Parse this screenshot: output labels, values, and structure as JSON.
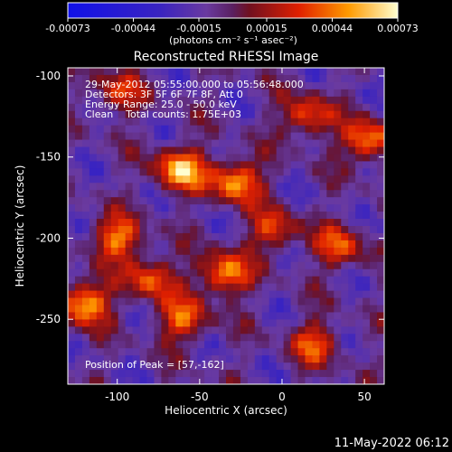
{
  "chart_data": {
    "type": "heatmap",
    "title": "Reconstructed RHESSI Image",
    "xlabel": "Heliocentric X (arcsec)",
    "ylabel": "Heliocentric Y (arcsec)",
    "xlim": [
      -130,
      62
    ],
    "ylim": [
      -290,
      -95
    ],
    "x_ticks": [
      -100,
      -50,
      0,
      50
    ],
    "x_tick_labels": [
      "-100",
      "-50",
      "0",
      "50"
    ],
    "y_ticks": [
      -100,
      -150,
      -200,
      -250
    ],
    "y_tick_labels": [
      "-100",
      "-150",
      "-200",
      "-250"
    ],
    "colorbar": {
      "range": [
        -0.00073,
        0.00073
      ],
      "ticks": [
        -0.00073,
        -0.00044,
        -0.00015,
        0.00015,
        0.00044,
        0.00073
      ],
      "tick_labels": [
        "-0.00073",
        "-0.00044",
        "-0.00015",
        "0.00015",
        "0.00044",
        "0.00073"
      ],
      "unit_label": "(photons cm⁻² s⁻¹ asec⁻²)"
    },
    "annotations": [
      "29-May-2012 05:55:00.000 to 05:56:48.000",
      "Detectors: 3F 5F 6F 7F 8F, Att 0",
      "Energy Range: 25.0 - 50.0 keV",
      "Clean    Total counts: 1.75E+03"
    ],
    "peak_text": "Position of Peak = [57,-162]",
    "peak": [
      57,
      -162
    ],
    "blobs": [
      {
        "x": -62,
        "y": -158,
        "v": 0.00072
      },
      {
        "x": -28,
        "y": -165,
        "v": 0.00066
      },
      {
        "x": -35,
        "y": -222,
        "v": 0.00064
      },
      {
        "x": -120,
        "y": -240,
        "v": 0.0007
      },
      {
        "x": -100,
        "y": -200,
        "v": 0.00058
      },
      {
        "x": -80,
        "y": -225,
        "v": 0.0005
      },
      {
        "x": -60,
        "y": -250,
        "v": 0.00052
      },
      {
        "x": 52,
        "y": -140,
        "v": 0.0006
      },
      {
        "x": 15,
        "y": -125,
        "v": 0.0005
      },
      {
        "x": 20,
        "y": -265,
        "v": 0.00045
      },
      {
        "x": 35,
        "y": -205,
        "v": 0.00046
      },
      {
        "x": -5,
        "y": -195,
        "v": 0.00044
      },
      {
        "x": -100,
        "y": -110,
        "v": 0.0004
      }
    ]
  },
  "footer": {
    "timestamp": "11-May-2022 06:12"
  }
}
